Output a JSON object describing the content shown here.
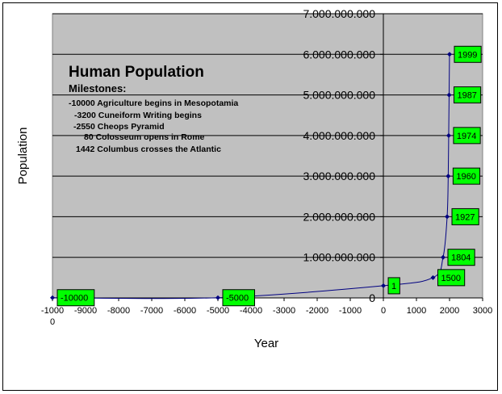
{
  "chart_data": {
    "type": "line",
    "title": "Human Population",
    "xlabel": "Year",
    "ylabel": "Population",
    "xlim": [
      -10000,
      3000
    ],
    "ylim": [
      0,
      7000000000
    ],
    "x_ticks": [
      -10000,
      -9000,
      -8000,
      -7000,
      -6000,
      -5000,
      -4000,
      -3000,
      -2000,
      -1000,
      0,
      1000,
      2000,
      3000
    ],
    "x_tick_labels": [
      "-1000\n0",
      "-9000",
      "-8000",
      "-7000",
      "-6000",
      "-5000",
      "-4000",
      "-3000",
      "-2000",
      "-1000",
      "0",
      "1000",
      "2000",
      "3000"
    ],
    "y_ticks": [
      0,
      1000000000,
      2000000000,
      3000000000,
      4000000000,
      5000000000,
      6000000000,
      7000000000
    ],
    "y_tick_labels": [
      "0",
      "1.000.000.000",
      "2.000.000.000",
      "3.000.000.000",
      "4.000.000.000",
      "5.000.000.000",
      "6.000.000.000",
      "7.000.000.000"
    ],
    "grid": true,
    "colors": {
      "plot_bg": "#c0c0c0",
      "line": "#000080",
      "label_bg": "#00ff00"
    },
    "series": [
      {
        "points": [
          {
            "x": -10000,
            "y": 5000000
          },
          {
            "x": -5000,
            "y": 5000000
          },
          {
            "x": 1,
            "y": 300000000
          },
          {
            "x": 1500,
            "y": 500000000
          },
          {
            "x": 1804,
            "y": 1000000000
          },
          {
            "x": 1927,
            "y": 2000000000
          },
          {
            "x": 1960,
            "y": 3000000000
          },
          {
            "x": 1974,
            "y": 4000000000
          },
          {
            "x": 1987,
            "y": 5000000000
          },
          {
            "x": 1999,
            "y": 6000000000
          }
        ]
      }
    ],
    "point_labels": [
      "-10000",
      "-5000",
      "1",
      "1500",
      "1804",
      "1927",
      "1960",
      "1974",
      "1987",
      "1999"
    ],
    "annotations": {
      "heading": "Milestones:",
      "lines": [
        "-10000  Agriculture begins in Mesopotamia",
        "-3200 Cuneiform Writing begins",
        "-2550 Cheops Pyramid",
        "80  Colosseum opens in Rome",
        "1442 Columbus crosses the Atlantic"
      ]
    }
  }
}
